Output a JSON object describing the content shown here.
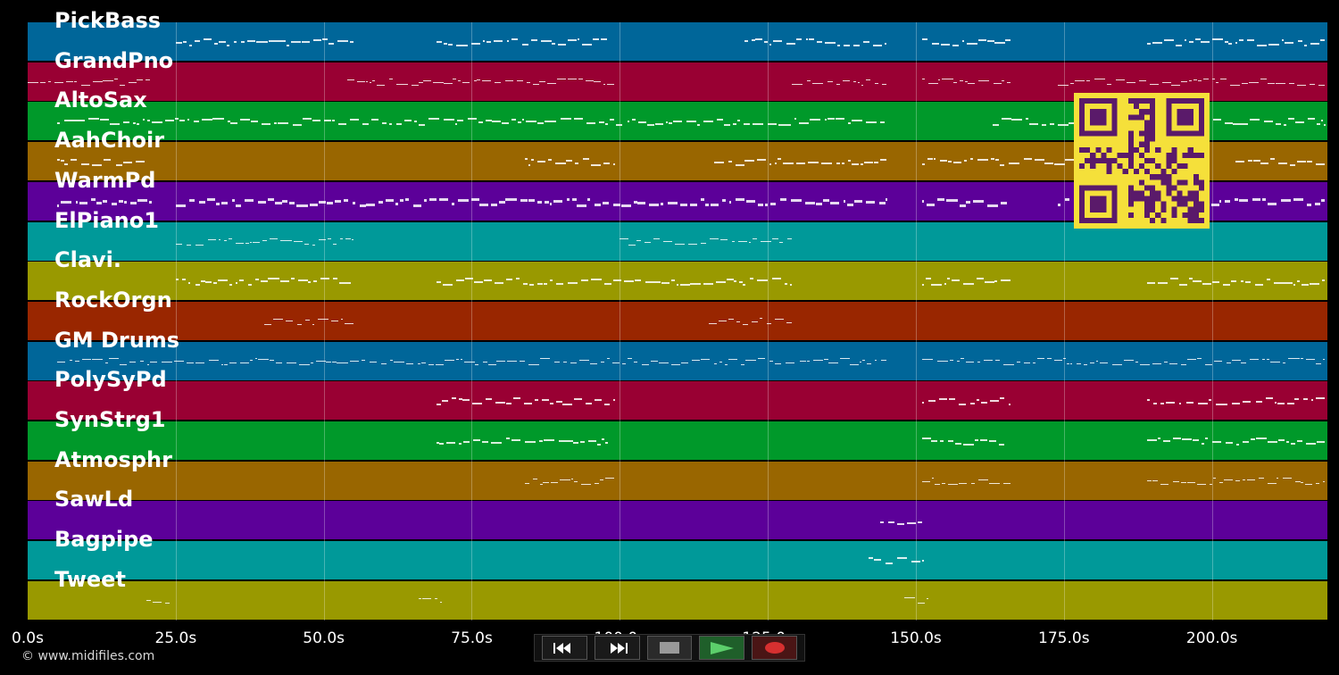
{
  "tracks": [
    {
      "name": "PickBass",
      "color": "#006699"
    },
    {
      "name": "GrandPno",
      "color": "#990033"
    },
    {
      "name": "AltoSax",
      "color": "#00992a"
    },
    {
      "name": "AahChoir",
      "color": "#996600"
    },
    {
      "name": "WarmPd",
      "color": "#5c0099"
    },
    {
      "name": "ElPiano1",
      "color": "#009999"
    },
    {
      "name": "Clavi.",
      "color": "#999900"
    },
    {
      "name": "RockOrgn",
      "color": "#992600"
    },
    {
      "name": "GM Drums",
      "color": "#006699"
    },
    {
      "name": "PolySyPd",
      "color": "#990033"
    },
    {
      "name": "SynStrg1",
      "color": "#00992a"
    },
    {
      "name": "Atmosphr",
      "color": "#996600"
    },
    {
      "name": "SawLd",
      "color": "#5c0099"
    },
    {
      "name": "Bagpipe",
      "color": "#009999"
    },
    {
      "name": "Tweet",
      "color": "#999900"
    }
  ],
  "timeline": {
    "labels": [
      "0.0s",
      "25.0s",
      "50.0s",
      "75.0s",
      "100.0s",
      "125.0s",
      "150.0s",
      "175.0s",
      "200.0s"
    ],
    "seconds": [
      0,
      25,
      50,
      75,
      100,
      125,
      150,
      175,
      200
    ],
    "max_seconds": 219.5
  },
  "note_ranges": [
    [
      [
        25,
        55
      ],
      [
        69,
        98
      ],
      [
        121,
        145
      ],
      [
        151,
        166
      ],
      [
        189,
        219
      ]
    ],
    [
      [
        0,
        21
      ],
      [
        54,
        99
      ],
      [
        129,
        145
      ],
      [
        151,
        166
      ],
      [
        174,
        219
      ]
    ],
    [
      [
        5,
        145
      ],
      [
        163,
        219
      ]
    ],
    [
      [
        5,
        20
      ],
      [
        84,
        99
      ],
      [
        116,
        145
      ],
      [
        151,
        181
      ],
      [
        204,
        219
      ]
    ],
    [
      [
        5,
        21
      ],
      [
        25,
        145
      ],
      [
        151,
        166
      ],
      [
        174,
        219
      ]
    ],
    [
      [
        25,
        55
      ],
      [
        100,
        129
      ]
    ],
    [
      [
        25,
        55
      ],
      [
        69,
        129
      ],
      [
        151,
        166
      ],
      [
        189,
        219
      ]
    ],
    [
      [
        40,
        55
      ],
      [
        115,
        129
      ]
    ],
    [
      [
        5,
        145
      ],
      [
        151,
        219
      ]
    ],
    [
      [
        69,
        99
      ],
      [
        151,
        166
      ],
      [
        189,
        219
      ]
    ],
    [
      [
        69,
        98
      ],
      [
        151,
        165
      ],
      [
        189,
        219
      ]
    ],
    [
      [
        84,
        99
      ],
      [
        151,
        166
      ],
      [
        189,
        219
      ]
    ],
    [
      [
        144,
        151
      ]
    ],
    [
      [
        142,
        151
      ]
    ],
    [
      [
        20,
        24
      ],
      [
        66,
        70
      ],
      [
        148,
        152
      ]
    ]
  ],
  "copyright": "© www.midifiles.com",
  "transport": {
    "rewind": "rewind-icon",
    "fast_forward": "fast-forward-icon",
    "stop": "stop-icon",
    "play": "play-icon",
    "record": "record-icon"
  },
  "colors": {
    "background": "#000000",
    "qr": "#f5e03a",
    "qr_dark": "#5a1a6a"
  }
}
